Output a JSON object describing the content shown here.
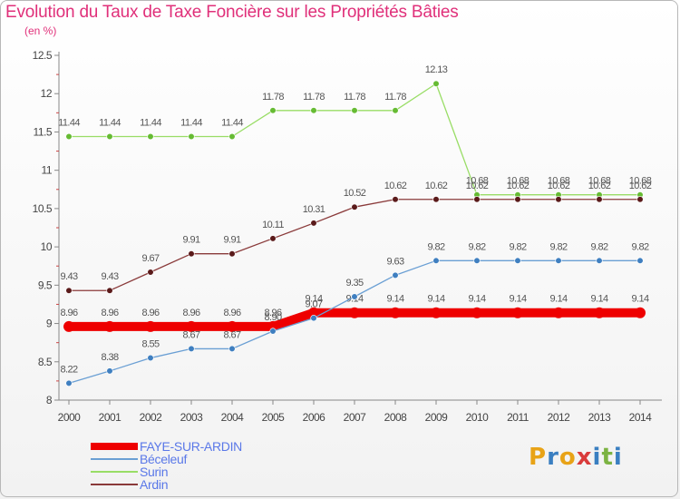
{
  "header": {
    "title": "Evolution du Taux de Taxe Foncière sur les Propriétés Bâties",
    "subtitle": "(en %)"
  },
  "logo": {
    "letters": [
      "P",
      "r",
      "o",
      "x",
      "i",
      "t",
      "i"
    ],
    "colors": [
      "#e8a317",
      "#3a7fc1",
      "#e8a317",
      "#d93b3b",
      "#3a7fc1",
      "#7cb342",
      "#3a7fc1"
    ]
  },
  "chart_data": {
    "type": "line",
    "title": "Evolution du Taux de Taxe Foncière sur les Propriétés Bâties",
    "subtitle": "(en %)",
    "x": [
      "2000",
      "2001",
      "2002",
      "2003",
      "2004",
      "2005",
      "2006",
      "2007",
      "2008",
      "2009",
      "2010",
      "2011",
      "2012",
      "2013",
      "2014"
    ],
    "ylim": [
      8,
      12.5
    ],
    "yticks": [
      "8",
      "8.5",
      "9",
      "9.5",
      "10",
      "10.5",
      "11",
      "11.5",
      "12",
      "12.5"
    ],
    "grid": false,
    "legend_position": "bottom-left",
    "series": [
      {
        "name": "FAYE-SUR-ARDIN",
        "color": "#ee0000",
        "marker_color": "#ee0000",
        "values": [
          8.96,
          8.96,
          8.96,
          8.96,
          8.96,
          8.96,
          9.14,
          9.14,
          9.14,
          9.14,
          9.14,
          9.14,
          9.14,
          9.14,
          9.14
        ],
        "labels": [
          "8.96",
          "8.96",
          "8.96",
          "8.96",
          "8.96",
          "8.96",
          "9.14",
          "9.14",
          "9.14",
          "9.14",
          "9.14",
          "9.14",
          "9.14",
          "9.14",
          "9.14"
        ]
      },
      {
        "name": "Béceleuf",
        "color": "#6a9fd4",
        "marker_color": "#3f7fc0",
        "values": [
          8.22,
          8.38,
          8.55,
          8.67,
          8.67,
          8.9,
          9.07,
          9.35,
          9.63,
          9.82,
          9.82,
          9.82,
          9.82,
          9.82,
          9.82
        ],
        "labels": [
          "8.22",
          "8.38",
          "8.55",
          "8.67",
          "8.67",
          "8.90",
          "9.07",
          "9.35",
          "9.63",
          "9.82",
          "9.82",
          "9.82",
          "9.82",
          "9.82",
          "9.82"
        ]
      },
      {
        "name": "Surin",
        "color": "#99dd66",
        "marker_color": "#66bb33",
        "values": [
          11.44,
          11.44,
          11.44,
          11.44,
          11.44,
          11.78,
          11.78,
          11.78,
          11.78,
          12.13,
          10.68,
          10.68,
          10.68,
          10.68,
          10.68
        ],
        "labels": [
          "11.44",
          "11.44",
          "11.44",
          "11.44",
          "11.44",
          "11.78",
          "11.78",
          "11.78",
          "11.78",
          "12.13",
          "10.68",
          "10.68",
          "10.68",
          "10.68",
          "10.68"
        ]
      },
      {
        "name": "Ardin",
        "color": "#8a3a3a",
        "marker_color": "#5a1a1a",
        "values": [
          9.43,
          9.43,
          9.67,
          9.91,
          9.91,
          10.11,
          10.31,
          10.52,
          10.62,
          10.62,
          10.62,
          10.62,
          10.62,
          10.62,
          10.62
        ],
        "labels": [
          "9.43",
          "9.43",
          "9.67",
          "9.91",
          "9.91",
          "10.11",
          "10.31",
          "10.52",
          "10.62",
          "10.62",
          "10.62",
          "10.62",
          "10.62",
          "10.62",
          "10.62"
        ]
      }
    ]
  }
}
